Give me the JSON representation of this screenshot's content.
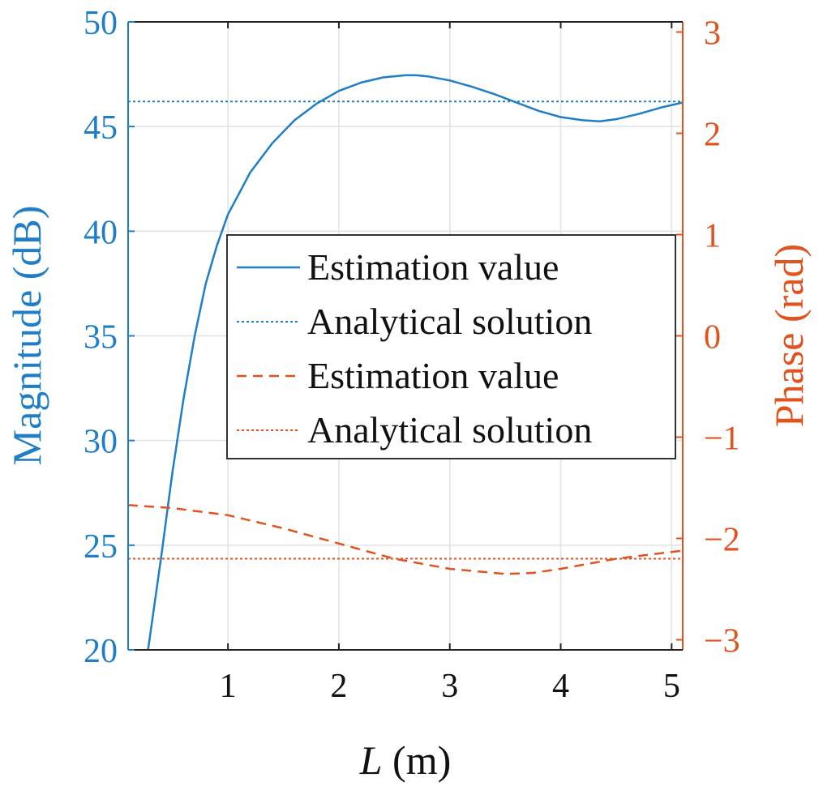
{
  "chart_data": {
    "type": "line",
    "title": "",
    "xlabel_var": "L",
    "xlabel_unit": " (m)",
    "ylabel_left": "Magnitude (dB)",
    "ylabel_right": "Phase (rad)",
    "xlim": [
      0.1,
      5.1
    ],
    "ylim_left": [
      20,
      50
    ],
    "ylim_right": [
      -3.1,
      3.1
    ],
    "x_ticks": [
      1,
      2,
      3,
      4,
      5
    ],
    "y_left_ticks": [
      20,
      25,
      30,
      35,
      40,
      45,
      50
    ],
    "y_right_ticks": [
      -3,
      -2,
      -1,
      0,
      1,
      2,
      3
    ],
    "y_right_tick_labels": [
      "−3",
      "−2",
      "−1",
      "0",
      "1",
      "2",
      "3"
    ],
    "grid": true,
    "legend_position": "center-right",
    "colors": {
      "magnitude": "#1f7ec6",
      "phase": "#e0531f"
    },
    "series": [
      {
        "name": "Estimation value",
        "axis": "left",
        "style": "solid",
        "x": [
          0.28,
          0.4,
          0.5,
          0.6,
          0.7,
          0.8,
          0.9,
          1.0,
          1.2,
          1.4,
          1.6,
          1.8,
          2.0,
          2.2,
          2.4,
          2.6,
          2.7,
          2.8,
          3.0,
          3.2,
          3.4,
          3.6,
          3.8,
          4.0,
          4.2,
          4.35,
          4.5,
          4.7,
          4.9,
          5.1
        ],
        "values": [
          20.0,
          24.5,
          28.5,
          32.0,
          35.0,
          37.5,
          39.3,
          40.8,
          42.8,
          44.2,
          45.3,
          46.1,
          46.7,
          47.1,
          47.35,
          47.45,
          47.45,
          47.4,
          47.2,
          46.9,
          46.55,
          46.15,
          45.75,
          45.45,
          45.3,
          45.25,
          45.35,
          45.6,
          45.9,
          46.15
        ]
      },
      {
        "name": "Analytical solution",
        "axis": "left",
        "style": "dotted",
        "x": [
          0.1,
          5.1
        ],
        "values": [
          46.2,
          46.2
        ]
      },
      {
        "name": "Estimation value",
        "axis": "right",
        "style": "dashed",
        "x": [
          0.1,
          0.5,
          1.0,
          1.5,
          2.0,
          2.5,
          3.0,
          3.5,
          3.75,
          4.0,
          4.5,
          5.1
        ],
        "values": [
          -1.67,
          -1.7,
          -1.77,
          -1.9,
          -2.05,
          -2.2,
          -2.3,
          -2.35,
          -2.34,
          -2.3,
          -2.2,
          -2.12
        ]
      },
      {
        "name": "Analytical solution",
        "axis": "right",
        "style": "dotted",
        "x": [
          0.1,
          5.1
        ],
        "values": [
          -2.2,
          -2.2
        ]
      }
    ],
    "legend": [
      "Estimation value",
      "Analytical solution",
      "Estimation value",
      "Analytical solution"
    ]
  }
}
